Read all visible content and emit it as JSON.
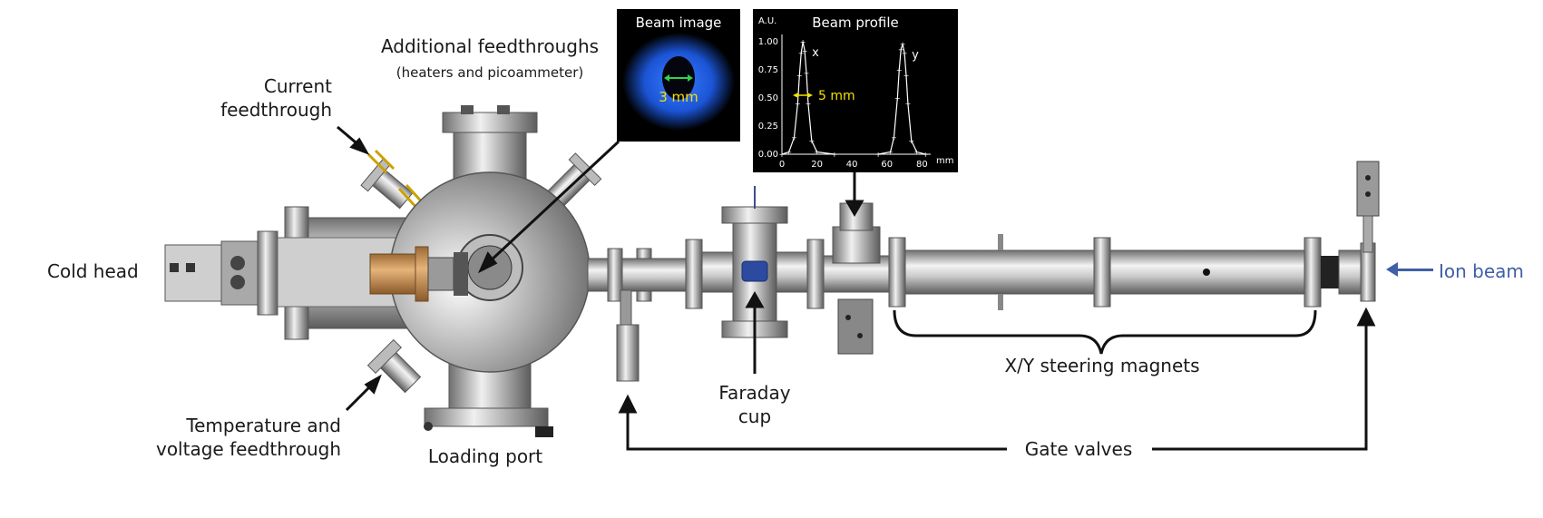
{
  "labels": {
    "additional_feedthroughs": "Additional feedthroughs",
    "additional_feedthroughs_sub": "(heaters and picoammeter)",
    "current_feedthrough_1": "Current",
    "current_feedthrough_2": "feedthrough",
    "cold_head": "Cold head",
    "temp_voltage_1": "Temperature and",
    "temp_voltage_2": "voltage feedthrough",
    "loading_port": "Loading port",
    "faraday_cup_1": "Faraday",
    "faraday_cup_2": "cup",
    "steering_magnets": "X/Y steering magnets",
    "gate_valves": "Gate valves",
    "ion_beam": "Ion beam"
  },
  "beam_image": {
    "title": "Beam image",
    "size_label": "3 mm"
  },
  "beam_profile": {
    "title": "Beam profile",
    "y_unit": "A.U.",
    "x_unit": "mm",
    "y_ticks": [
      "1.00",
      "0.75",
      "0.50",
      "0.25",
      "0.00"
    ],
    "x_ticks": [
      "0",
      "20",
      "40",
      "60",
      "80"
    ],
    "x_label": "x",
    "y_label": "y",
    "fwhm_label": "5 mm"
  },
  "chart_data": {
    "type": "line",
    "title": "Beam profile",
    "xlabel": "mm",
    "ylabel": "A.U.",
    "xlim": [
      0,
      85
    ],
    "ylim": [
      0,
      1
    ],
    "series": [
      {
        "name": "x",
        "x": [
          0,
          4,
          7,
          9,
          10,
          11,
          12,
          13,
          14,
          15,
          17,
          20,
          30
        ],
        "values": [
          0.0,
          0.02,
          0.15,
          0.45,
          0.7,
          0.9,
          1.0,
          0.92,
          0.72,
          0.45,
          0.12,
          0.02,
          0.0
        ]
      },
      {
        "name": "y",
        "x": [
          55,
          62,
          64,
          66,
          67,
          68,
          69,
          70,
          71,
          72,
          74,
          77,
          82
        ],
        "values": [
          0.0,
          0.02,
          0.15,
          0.5,
          0.75,
          0.93,
          0.98,
          0.9,
          0.7,
          0.45,
          0.12,
          0.02,
          0.0
        ]
      }
    ],
    "annotations": [
      "5 mm"
    ]
  },
  "colors": {
    "ion_beam": "#3f5fa7",
    "annotation": "#f4e200",
    "metal": "#b9b9b9",
    "copper": "#c8955a"
  }
}
